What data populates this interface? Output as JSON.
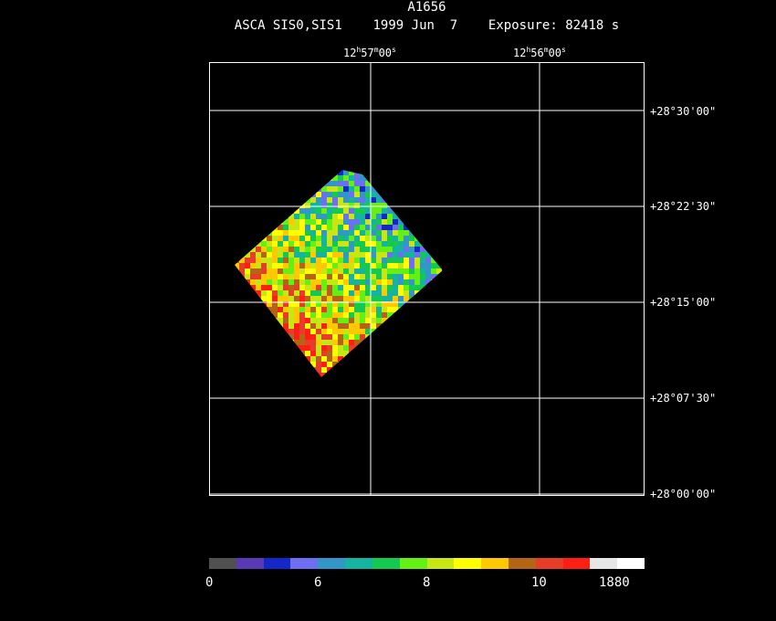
{
  "title": "A1656",
  "subtitle": "ASCA SIS0,SIS1    1999 Jun  7    Exposure: 82418 s",
  "ra_labels": [
    {
      "h": "12",
      "m": "57",
      "s": "00"
    },
    {
      "h": "12",
      "m": "56",
      "s": "00"
    }
  ],
  "dec_labels": [
    "+28°30'00\"",
    "+28°22'30\"",
    "+28°15'00\"",
    "+28°07'30\"",
    "+28°00'00\""
  ],
  "colorbar": {
    "colors": [
      "#505050",
      "#5a3ab4",
      "#1428c8",
      "#6e6ef0",
      "#3296c8",
      "#14b4a0",
      "#14c850",
      "#64f014",
      "#c8e614",
      "#ffff00",
      "#ffc800",
      "#b46414",
      "#e63c28",
      "#ff1e14",
      "#e6e6e6",
      "#ffffff"
    ],
    "labels": [
      "0",
      "6",
      "8",
      "10",
      "1880"
    ]
  }
}
